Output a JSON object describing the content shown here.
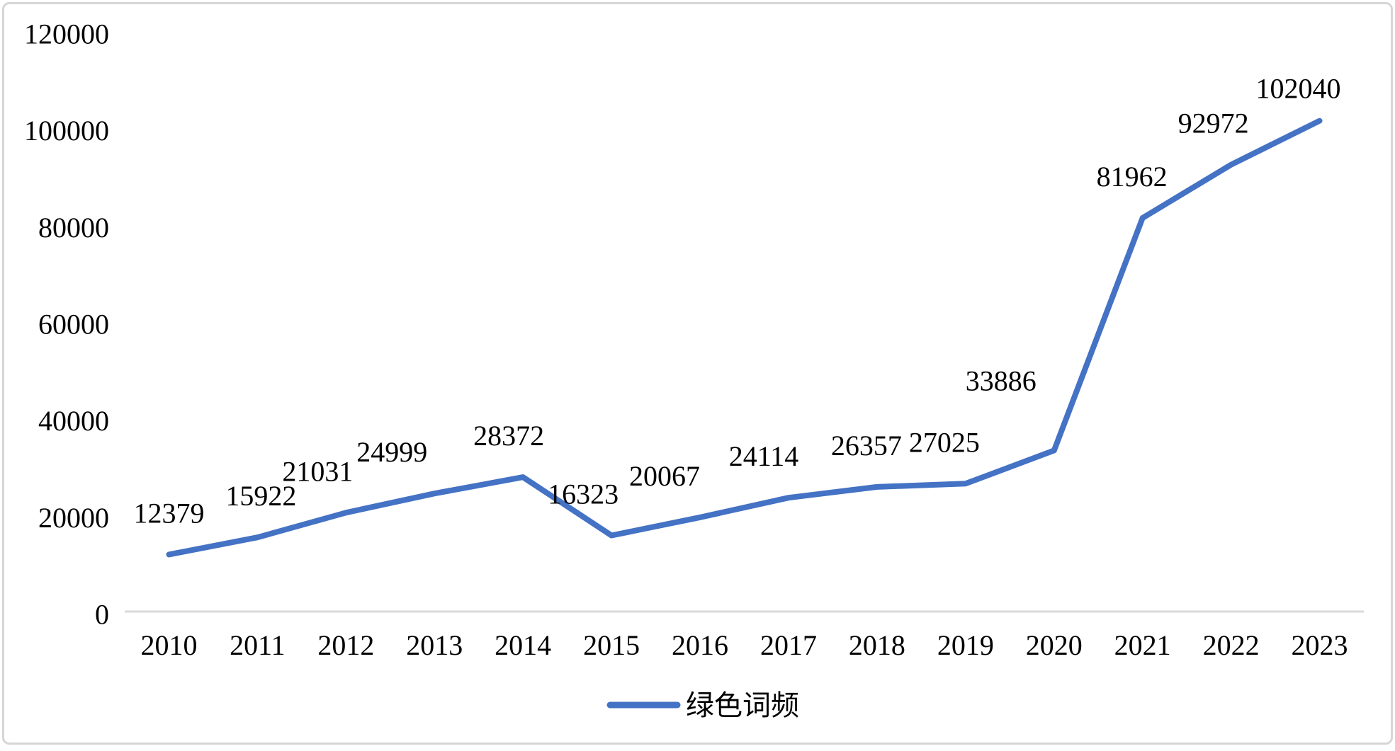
{
  "chart_data": {
    "type": "line",
    "title": "",
    "categories": [
      "2010",
      "2011",
      "2012",
      "2013",
      "2014",
      "2015",
      "2016",
      "2017",
      "2018",
      "2019",
      "2020",
      "2021",
      "2022",
      "2023"
    ],
    "series": [
      {
        "name": "绿色词频",
        "color": "#4472C4",
        "values": [
          12379,
          15922,
          21031,
          24999,
          28372,
          16323,
          20067,
          24114,
          26357,
          27025,
          33886,
          81962,
          92972,
          102040
        ]
      }
    ],
    "data_labels": [
      12379,
      15922,
      21031,
      24999,
      28372,
      16323,
      20067,
      24114,
      26357,
      27025,
      33886,
      81962,
      92972,
      102040
    ],
    "ylim": [
      0,
      120000
    ],
    "ytick_step": 20000,
    "ytick_labels": [
      "0",
      "20000",
      "40000",
      "60000",
      "80000",
      "100000",
      "120000"
    ],
    "xlabel": "",
    "ylabel": "",
    "grid": false,
    "legend_position": "bottom-center",
    "legend_entries": [
      {
        "label": "绿色词频",
        "color": "#4472C4"
      }
    ],
    "colors": {
      "line": "#4472C4",
      "axis_line": "#D9D9D9",
      "text": "#000000",
      "frame_border": "#D6D6D6",
      "background": "#FFFFFF"
    }
  }
}
